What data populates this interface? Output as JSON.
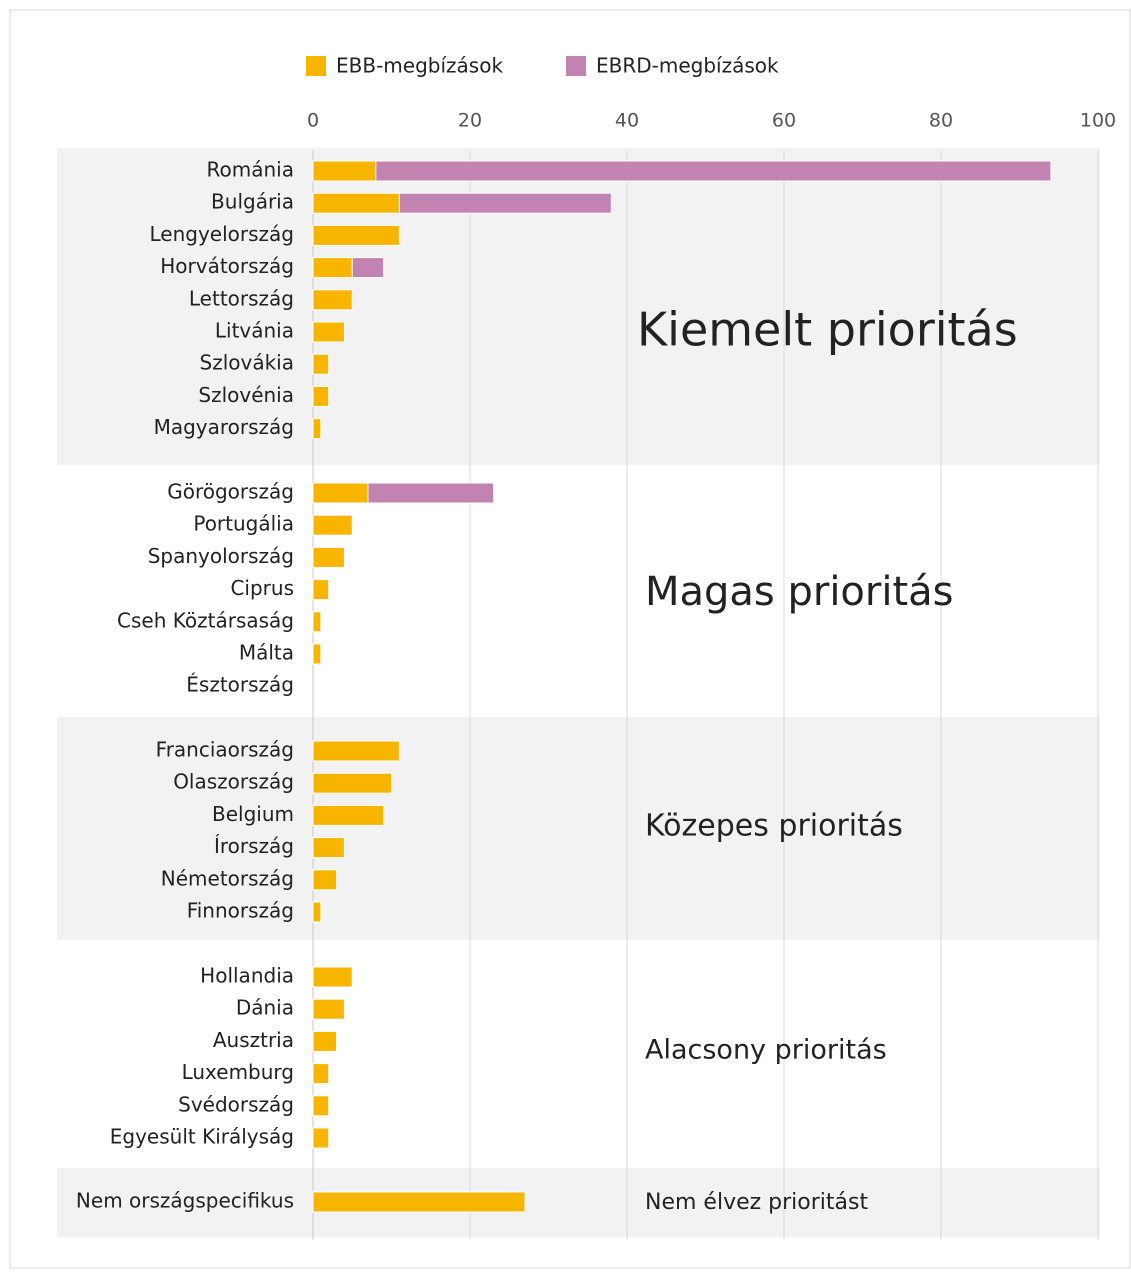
{
  "chart_data": {
    "type": "stacked-bar-horizontal",
    "xlim": [
      0,
      100
    ],
    "xticks": [
      0,
      20,
      40,
      60,
      80,
      100
    ],
    "grid": true,
    "legend": "top",
    "groups": [
      {
        "label": "Kiemelt prioritás",
        "categories": [
          "Románia",
          "Bulgária",
          "Lengyelország",
          "Horvátország",
          "Lettország",
          "Litvánia",
          "Szlovákia",
          "Szlovénia",
          "Magyarország"
        ]
      },
      {
        "label": "Magas prioritás",
        "categories": [
          "Görögország",
          "Portugália",
          "Spanyolország",
          "Ciprus",
          "Cseh Köztársaság",
          "Málta",
          "Észtország"
        ]
      },
      {
        "label": "Közepes prioritás",
        "categories": [
          "Franciaország",
          "Olaszország",
          "Belgium",
          "Írország",
          "Németország",
          "Finnország"
        ]
      },
      {
        "label": "Alacsony prioritás",
        "categories": [
          "Hollandia",
          "Dánia",
          "Ausztria",
          "Luxemburg",
          "Svédország",
          "Egyesült Királyság"
        ]
      },
      {
        "label": "Nem élvez prioritást",
        "categories": [
          "Nem országspecifikus"
        ]
      }
    ],
    "series": [
      {
        "name": "EBB-megbízások",
        "color": "#f7b500",
        "values": [
          [
            8,
            11,
            11,
            5,
            5,
            4,
            2,
            2,
            1
          ],
          [
            7,
            5,
            4,
            2,
            1,
            1,
            0
          ],
          [
            11,
            10,
            9,
            4,
            3,
            1
          ],
          [
            5,
            4,
            3,
            2,
            2,
            2
          ],
          [
            27
          ]
        ]
      },
      {
        "name": "EBRD-megbízások",
        "color": "#c283b0",
        "values": [
          [
            86,
            27,
            0,
            4,
            0,
            0,
            0,
            0,
            0
          ],
          [
            16,
            0,
            0,
            0,
            0,
            0,
            0
          ],
          [
            0,
            0,
            0,
            0,
            0,
            0
          ],
          [
            0,
            0,
            0,
            0,
            0,
            0
          ],
          [
            0
          ]
        ]
      }
    ]
  }
}
